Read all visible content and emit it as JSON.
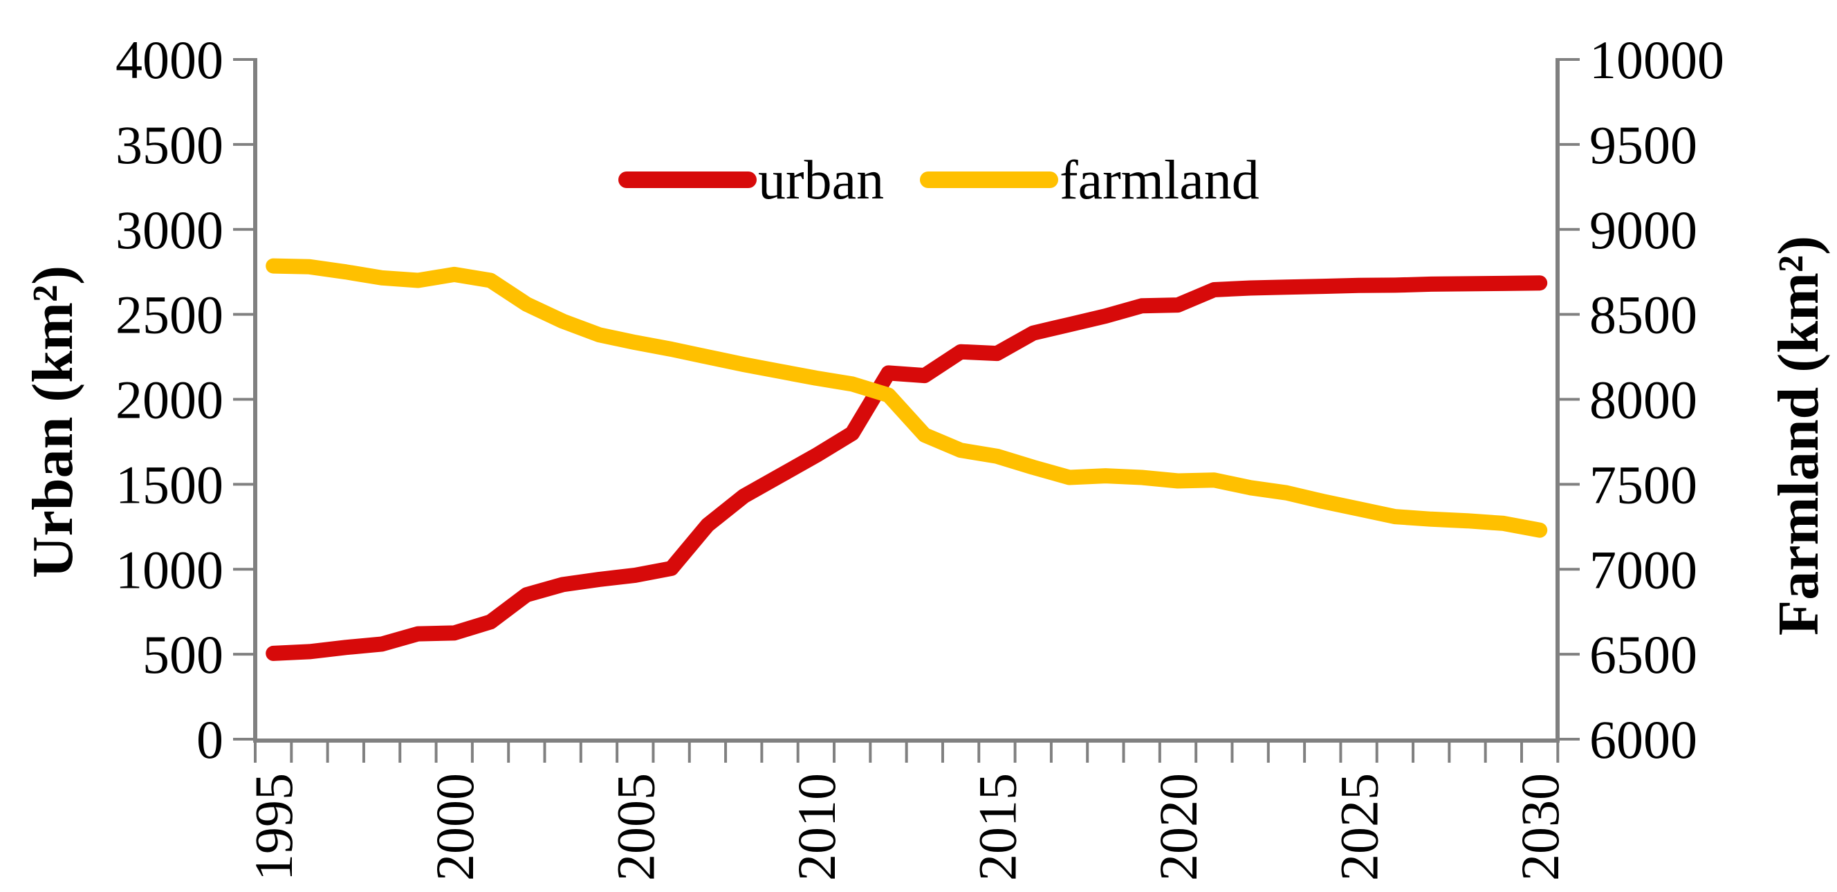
{
  "chart_data": {
    "type": "line",
    "title": "",
    "x": [
      1995,
      1996,
      1997,
      1998,
      1999,
      2000,
      2001,
      2002,
      2003,
      2004,
      2005,
      2006,
      2007,
      2008,
      2009,
      2010,
      2011,
      2012,
      2013,
      2014,
      2015,
      2016,
      2017,
      2018,
      2019,
      2020,
      2021,
      2022,
      2023,
      2024,
      2025,
      2026,
      2027,
      2028,
      2029,
      2030
    ],
    "series": [
      {
        "name": "urban",
        "axis": "left",
        "color": "#D70A0A",
        "values": [
          505,
          515,
          540,
          560,
          620,
          625,
          690,
          850,
          910,
          940,
          965,
          1005,
          1260,
          1430,
          1550,
          1670,
          1800,
          2155,
          2140,
          2280,
          2270,
          2390,
          2440,
          2490,
          2550,
          2555,
          2645,
          2655,
          2660,
          2665,
          2670,
          2672,
          2678,
          2680,
          2682,
          2685
        ]
      },
      {
        "name": "farmland",
        "axis": "right",
        "color": "#FFC000",
        "values": [
          8785,
          8780,
          8750,
          8715,
          8700,
          8735,
          8700,
          8560,
          8460,
          8380,
          8335,
          8295,
          8250,
          8205,
          8165,
          8125,
          8090,
          8025,
          7790,
          7700,
          7665,
          7600,
          7540,
          7550,
          7540,
          7520,
          7525,
          7480,
          7450,
          7400,
          7355,
          7310,
          7295,
          7285,
          7270,
          7230
        ]
      }
    ],
    "left_axis": {
      "title": "Urban (km²)",
      "min": 0,
      "max": 4000,
      "step": 500,
      "tick_labels": [
        "0",
        "500",
        "1000",
        "1500",
        "2000",
        "2500",
        "3000",
        "3500",
        "4000"
      ]
    },
    "right_axis": {
      "title": "Farmland (km²)",
      "min": 6000,
      "max": 10000,
      "step": 500,
      "tick_labels": [
        "6000",
        "6500",
        "7000",
        "7500",
        "8000",
        "8500",
        "9000",
        "9500",
        "10000"
      ]
    },
    "x_axis": {
      "labeled_years": [
        "1995",
        "2000",
        "2005",
        "2010",
        "2015",
        "2020",
        "2025",
        "2030"
      ],
      "minor_tick_every_years": 1,
      "label_rotation_deg": -90
    },
    "legend": {
      "position": "top-center-inside",
      "items": [
        {
          "label": "urban",
          "color": "#D70A0A"
        },
        {
          "label": "farmland",
          "color": "#FFC000"
        }
      ]
    },
    "grid": false,
    "styles": {
      "axis_color": "#808080",
      "text_color": "#000000",
      "background": "#FFFFFF"
    }
  }
}
